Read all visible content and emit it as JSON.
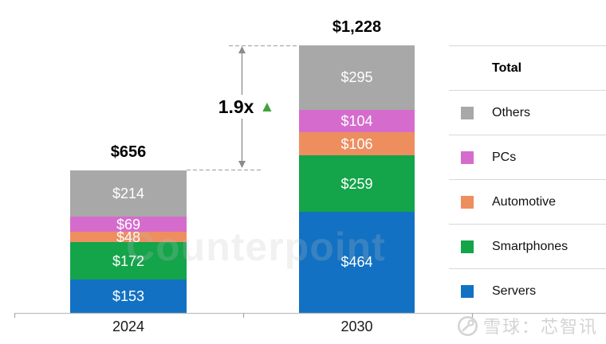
{
  "chart_data": {
    "type": "bar",
    "stacked": true,
    "title": "",
    "xlabel": "",
    "ylabel": "",
    "value_axis_visible": false,
    "legend_position": "right",
    "categories": [
      "2024",
      "2030"
    ],
    "totals": [
      {
        "value": 656,
        "label": "$656"
      },
      {
        "value": 1228,
        "label": "$1,228"
      }
    ],
    "series": [
      {
        "name": "Others",
        "color": "#A8A8A8",
        "values": [
          214,
          295
        ],
        "labels": [
          "$214",
          "$295"
        ]
      },
      {
        "name": "PCs",
        "color": "#D56CCD",
        "values": [
          69,
          104
        ],
        "labels": [
          "$69",
          "$104"
        ]
      },
      {
        "name": "Automotive",
        "color": "#EE8E5F",
        "values": [
          48,
          106
        ],
        "labels": [
          "$48",
          "$106"
        ]
      },
      {
        "name": "Smartphones",
        "color": "#14A44A",
        "values": [
          172,
          259
        ],
        "labels": [
          "$172",
          "$259"
        ]
      },
      {
        "name": "Servers",
        "color": "#1271C2",
        "values": [
          153,
          464
        ],
        "labels": [
          "$153",
          "$464"
        ]
      }
    ]
  },
  "annotation": {
    "growth_label": "1.9x",
    "triangle_icon": "▲",
    "triangle_color": "#43A23C"
  },
  "legend": {
    "title": "Total",
    "items": [
      {
        "label": "Others",
        "color": "#A8A8A8"
      },
      {
        "label": "PCs",
        "color": "#D56CCD"
      },
      {
        "label": "Automotive",
        "color": "#EE8E5F"
      },
      {
        "label": "Smartphones",
        "color": "#14A44A"
      },
      {
        "label": "Servers",
        "color": "#1271C2"
      }
    ]
  },
  "watermarks": {
    "center_text": "Counterpoint",
    "bottom_right_text": "雪球：芯智讯"
  }
}
